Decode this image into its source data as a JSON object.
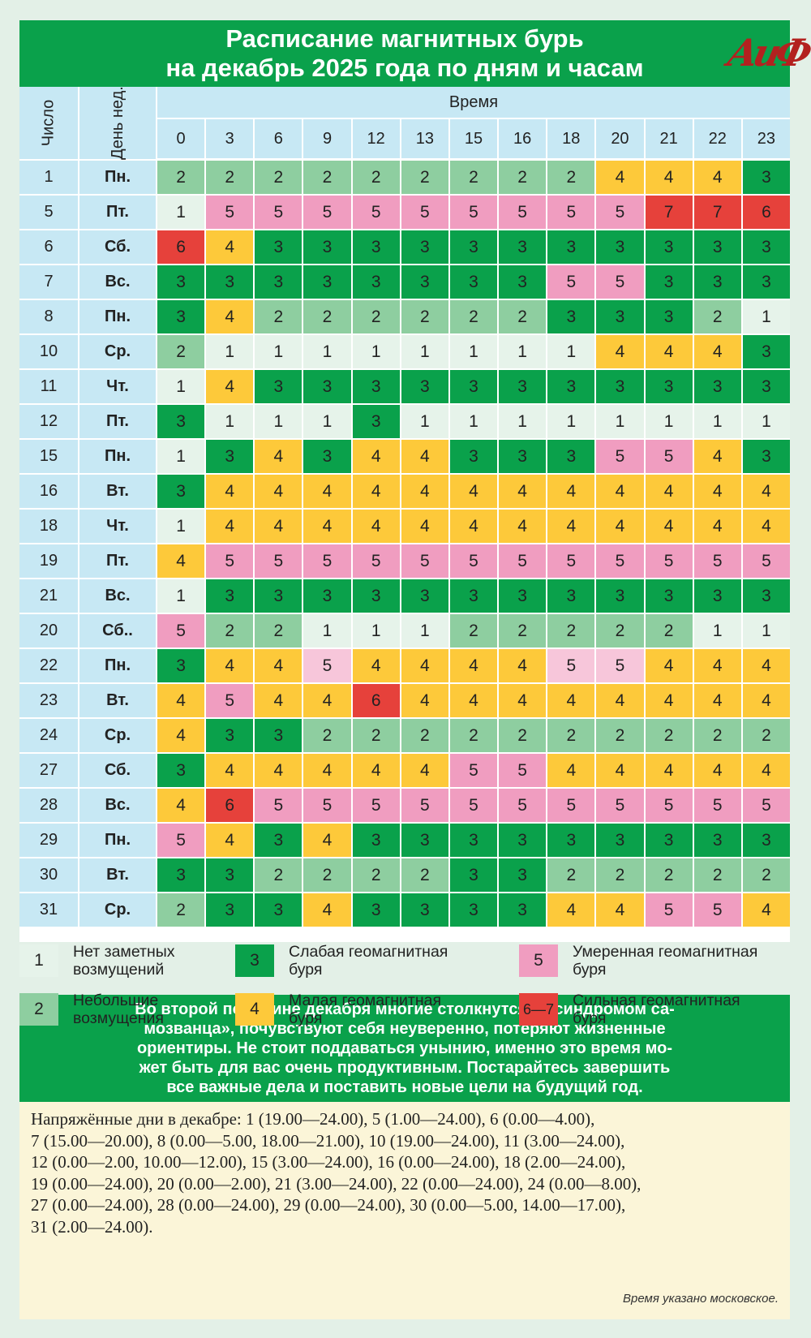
{
  "title": {
    "line1": "Расписание магнитных бурь",
    "line2": "на декабрь 2025 года по дням и часам",
    "logo": "АиФ"
  },
  "table": {
    "col_day": "Число",
    "col_dow": "День нед.",
    "time_header": "Время",
    "hours": [
      "0",
      "3",
      "6",
      "9",
      "12",
      "13",
      "15",
      "16",
      "18",
      "20",
      "21",
      "22",
      "23"
    ]
  },
  "chart_data": {
    "type": "heatmap",
    "title": "Расписание магнитных бурь на декабрь 2025 года по дням и часам",
    "xlabel": "Время",
    "ylabel": "Число",
    "x": [
      "0",
      "3",
      "6",
      "9",
      "12",
      "13",
      "15",
      "16",
      "18",
      "20",
      "21",
      "22",
      "23"
    ],
    "rows": [
      {
        "day": "1",
        "dow": "Пн.",
        "values": [
          2,
          2,
          2,
          2,
          2,
          2,
          2,
          2,
          2,
          4,
          4,
          4,
          3
        ]
      },
      {
        "day": "5",
        "dow": "Пт.",
        "values": [
          1,
          5,
          5,
          5,
          5,
          5,
          5,
          5,
          5,
          5,
          7,
          7,
          6
        ]
      },
      {
        "day": "6",
        "dow": "Сб.",
        "values": [
          6,
          4,
          3,
          3,
          3,
          3,
          3,
          3,
          3,
          3,
          3,
          3,
          3
        ]
      },
      {
        "day": "7",
        "dow": "Вс.",
        "values": [
          3,
          3,
          3,
          3,
          3,
          3,
          3,
          3,
          5,
          5,
          3,
          3,
          3
        ]
      },
      {
        "day": "8",
        "dow": "Пн.",
        "values": [
          3,
          4,
          2,
          2,
          2,
          2,
          2,
          2,
          3,
          3,
          3,
          2,
          1
        ]
      },
      {
        "day": "10",
        "dow": "Ср.",
        "values": [
          2,
          1,
          1,
          1,
          1,
          1,
          1,
          1,
          1,
          4,
          4,
          4,
          3
        ]
      },
      {
        "day": "11",
        "dow": "Чт.",
        "values": [
          1,
          4,
          3,
          3,
          3,
          3,
          3,
          3,
          3,
          3,
          3,
          3,
          3
        ]
      },
      {
        "day": "12",
        "dow": "Пт.",
        "values": [
          3,
          1,
          1,
          1,
          3,
          1,
          1,
          1,
          1,
          1,
          1,
          1,
          1
        ]
      },
      {
        "day": "15",
        "dow": "Пн.",
        "values": [
          1,
          3,
          4,
          3,
          4,
          4,
          3,
          3,
          3,
          5,
          5,
          4,
          3
        ]
      },
      {
        "day": "16",
        "dow": "Вт.",
        "values": [
          3,
          4,
          4,
          4,
          4,
          4,
          4,
          4,
          4,
          4,
          4,
          4,
          4
        ]
      },
      {
        "day": "18",
        "dow": "Чт.",
        "values": [
          1,
          4,
          4,
          4,
          4,
          4,
          4,
          4,
          4,
          4,
          4,
          4,
          4
        ]
      },
      {
        "day": "19",
        "dow": "Пт.",
        "values": [
          4,
          5,
          5,
          5,
          5,
          5,
          5,
          5,
          5,
          5,
          5,
          5,
          5
        ]
      },
      {
        "day": "21",
        "dow": "Вс.",
        "values": [
          1,
          3,
          3,
          3,
          3,
          3,
          3,
          3,
          3,
          3,
          3,
          3,
          3
        ]
      },
      {
        "day": "20",
        "dow": "Сб..",
        "values": [
          5,
          2,
          2,
          1,
          1,
          1,
          2,
          2,
          2,
          2,
          2,
          1,
          1
        ]
      },
      {
        "day": "22",
        "dow": "Пн.",
        "values": [
          3,
          4,
          4,
          5,
          4,
          4,
          4,
          4,
          5,
          5,
          4,
          4,
          4
        ]
      },
      {
        "day": "23",
        "dow": "Вт.",
        "values": [
          4,
          5,
          4,
          4,
          6,
          4,
          4,
          4,
          4,
          4,
          4,
          4,
          4
        ]
      },
      {
        "day": "24",
        "dow": "Ср.",
        "values": [
          4,
          3,
          3,
          2,
          2,
          2,
          2,
          2,
          2,
          2,
          2,
          2,
          2
        ]
      },
      {
        "day": "27",
        "dow": "Сб.",
        "values": [
          3,
          4,
          4,
          4,
          4,
          4,
          5,
          5,
          4,
          4,
          4,
          4,
          4
        ]
      },
      {
        "day": "28",
        "dow": "Вс.",
        "values": [
          4,
          6,
          5,
          5,
          5,
          5,
          5,
          5,
          5,
          5,
          5,
          5,
          5
        ]
      },
      {
        "day": "29",
        "dow": "Пн.",
        "values": [
          5,
          4,
          3,
          4,
          3,
          3,
          3,
          3,
          3,
          3,
          3,
          3,
          3
        ]
      },
      {
        "day": "30",
        "dow": "Вт.",
        "values": [
          3,
          3,
          2,
          2,
          2,
          2,
          3,
          3,
          2,
          2,
          2,
          2,
          2
        ]
      },
      {
        "day": "31",
        "dow": "Ср.",
        "values": [
          2,
          3,
          3,
          4,
          3,
          3,
          3,
          3,
          4,
          4,
          5,
          5,
          4
        ]
      }
    ],
    "light_pink_cells": [
      [
        14,
        3
      ],
      [
        14,
        8
      ],
      [
        14,
        9
      ]
    ],
    "colors": {
      "1": "#e6f3ea",
      "2": "#8ecea0",
      "3": "#0aa14b",
      "4": "#fdc93a",
      "5": "#f09dc0",
      "5_light": "#f7c6da",
      "6": "#e6413b",
      "7": "#e6413b",
      "header": "#c7e8f4"
    }
  },
  "legend": [
    {
      "swatch": "1",
      "label1": "Нет заметных",
      "label2": "возмущений",
      "color": "#e6f3ea"
    },
    {
      "swatch": "3",
      "label1": "Слабая геомагнитная",
      "label2": "буря",
      "color": "#0aa14b"
    },
    {
      "swatch": "5",
      "label1": "Умеренная геомагнитная",
      "label2": "буря",
      "color": "#f09dc0"
    },
    {
      "swatch": "2",
      "label1": "Небольшие",
      "label2": "возмущения",
      "color": "#8ecea0"
    },
    {
      "swatch": "4",
      "label1": "Малая геомагнитная",
      "label2": "буря",
      "color": "#fdc93a"
    },
    {
      "swatch": "6—7",
      "label1": "Сильная геомагнитная",
      "label2": "буря",
      "color": "#e6413b"
    }
  ],
  "advice": {
    "l1": "Во второй половине декабря многие столкнутся с «синдромом са-",
    "l2": "мозванца», почувствуют себя неуверенно, потеряют жизненные",
    "l3": "ориентиры. Не стоит поддаваться унынию, именно это время мо-",
    "l4": "жет быть для вас очень продуктивным. Постарайтесь завершить",
    "l5": "все важные дела и поставить новые цели на будущий год."
  },
  "tense_days": {
    "l1": "Напряжённые дни в декабре: 1 (19.00—24.00), 5 (1.00—24.00), 6 (0.00—4.00),",
    "l2": "7 (15.00—20.00), 8 (0.00—5.00, 18.00—21.00), 10 (19.00—24.00), 11 (3.00—24.00),",
    "l3": "12 (0.00—2.00, 10.00—12.00), 15 (3.00—24.00), 16 (0.00—24.00), 18 (2.00—24.00),",
    "l4": "19 (0.00—24.00), 20 (0.00—2.00), 21 (3.00—24.00), 22 (0.00—24.00), 24 (0.00—8.00),",
    "l5": "27 (0.00—24.00), 28 (0.00—24.00), 29 (0.00—24.00), 30 (0.00—5.00, 14.00—17.00),",
    "l6": "31 (2.00—24.00).",
    "note": "Время указано московское."
  }
}
